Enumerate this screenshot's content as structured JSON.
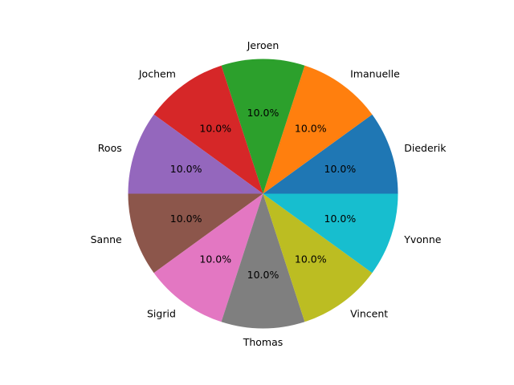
{
  "chart_data": {
    "type": "pie",
    "title": "",
    "categories": [
      "Diederik",
      "Imanuelle",
      "Jeroen",
      "Jochem",
      "Roos",
      "Sanne",
      "Sigrid",
      "Thomas",
      "Vincent",
      "Yvonne"
    ],
    "values": [
      1,
      1,
      1,
      1,
      1,
      1,
      1,
      1,
      1,
      1
    ],
    "percent_labels": [
      "10.0%",
      "10.0%",
      "10.0%",
      "10.0%",
      "10.0%",
      "10.0%",
      "10.0%",
      "10.0%",
      "10.0%",
      "10.0%"
    ],
    "colors": [
      "#1f77b4",
      "#ff7f0e",
      "#2ca02c",
      "#d62728",
      "#9467bd",
      "#8c564b",
      "#e377c2",
      "#7f7f7f",
      "#bcbd22",
      "#17becf"
    ],
    "start_angle_deg": 0,
    "direction": "counterclockwise",
    "legend": "none"
  }
}
